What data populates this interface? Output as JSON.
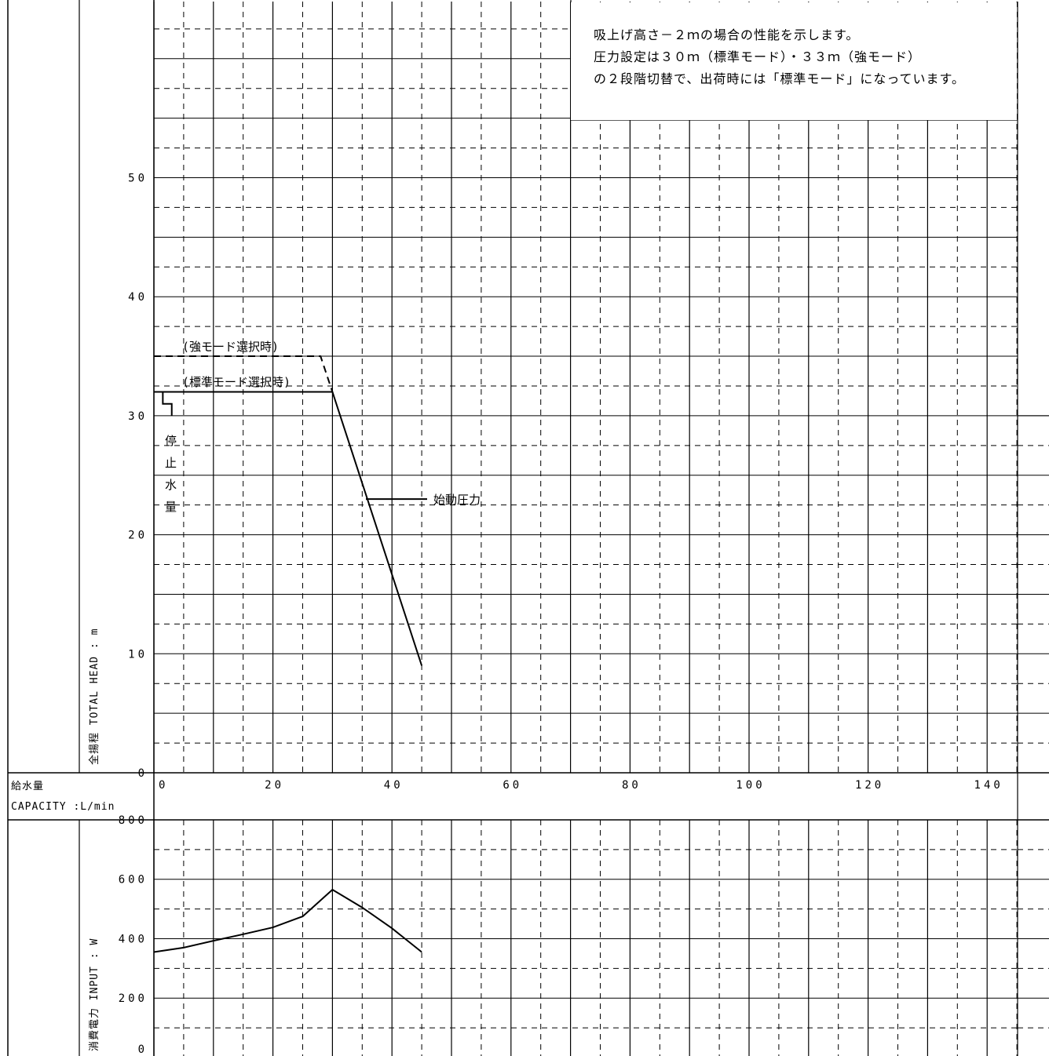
{
  "chart_data": [
    {
      "type": "line",
      "title": "",
      "ylabel": "全揚程 TOTAL HEAD : m",
      "xlabel": "給水量 CAPACITY :L/min",
      "xlabel_jp": "給水量",
      "xlabel_en": "CAPACITY :L/min",
      "xlim": [
        0,
        145
      ],
      "ylim": [
        0,
        64
      ],
      "x_ticks": [
        0,
        20,
        40,
        60,
        80,
        100,
        120,
        140
      ],
      "y_ticks": [
        0,
        10,
        20,
        30,
        40,
        50
      ],
      "grid": true,
      "note": [
        "吸上げ高さ－２ｍの場合の性能を示します。",
        "圧力設定は３０ｍ（標準モード）・３３ｍ（強モード）",
        "の２段階切替で、出荷時には「標準モード」になっています。"
      ],
      "series": [
        {
          "name": "(強モード選択時)",
          "style": "dashed",
          "points": [
            [
              0,
              35
            ],
            [
              28,
              35
            ],
            [
              30,
              32
            ]
          ]
        },
        {
          "name": "(標準モード選択時)",
          "style": "solid",
          "points": [
            [
              0,
              32
            ],
            [
              30,
              32
            ],
            [
              45,
              9
            ]
          ]
        }
      ],
      "annotations": {
        "stop_flow": "停止水量",
        "stop_flow_chars": [
          "停",
          "止",
          "水",
          "量"
        ],
        "start_pressure": "始動圧力",
        "start_pressure_value": 23
      }
    },
    {
      "type": "line",
      "title": "",
      "ylabel": "消費電力 INPUT : W",
      "xlim": [
        0,
        145
      ],
      "ylim": [
        0,
        800
      ],
      "y_ticks": [
        0,
        200,
        400,
        600,
        800
      ],
      "grid": true,
      "series": [
        {
          "name": "",
          "style": "solid",
          "points": [
            [
              0,
              355
            ],
            [
              5,
              370
            ],
            [
              10,
              393
            ],
            [
              15,
              415
            ],
            [
              20,
              438
            ],
            [
              25,
              475
            ],
            [
              30,
              565
            ],
            [
              35,
              505
            ],
            [
              40,
              435
            ],
            [
              45,
              355
            ]
          ]
        }
      ]
    }
  ]
}
